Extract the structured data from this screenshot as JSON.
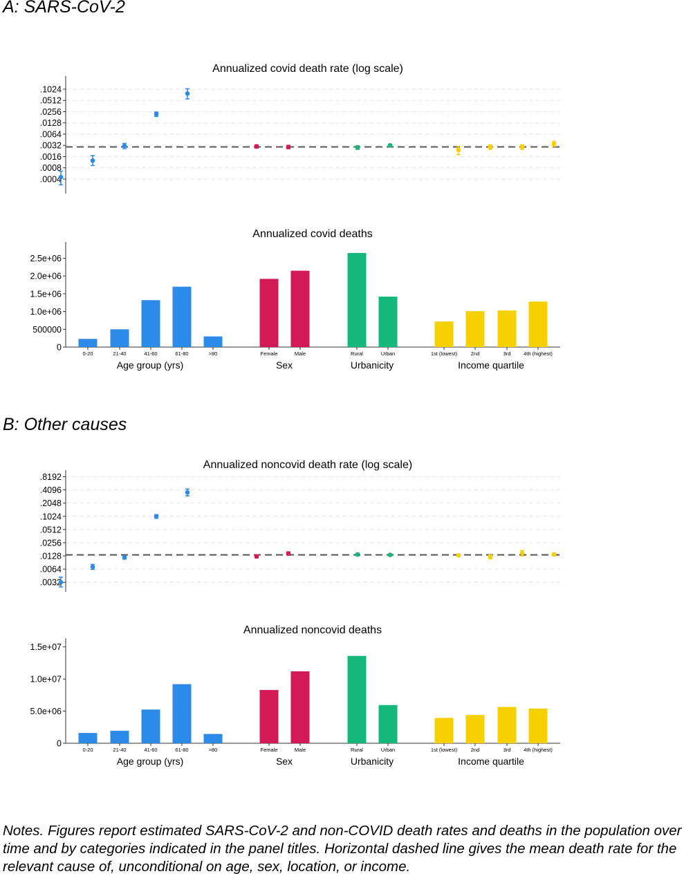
{
  "panels": {
    "a_label": "A: SARS-CoV-2",
    "b_label": "B: Other causes"
  },
  "notes": "Notes.  Figures report estimated SARS-CoV-2 and non-COVID death rates and deaths in the population over time and by categories indicated in the panel titles.  Horizontal dashed line gives the mean death rate for the relevant cause of, unconditional on age, sex, location, or income.",
  "colors": {
    "age": "#2c8ae8",
    "sex": "#d31a57",
    "urbanicity": "#14b87a",
    "income": "#f7d000",
    "dashed": "#555555",
    "grid": "#e6e6e6"
  },
  "groups": [
    {
      "name": "Age group (yrs)",
      "color_key": "age",
      "categories": [
        "0-20",
        "21-40",
        "41-60",
        "61-80",
        ">80"
      ]
    },
    {
      "name": "Sex",
      "color_key": "sex",
      "categories": [
        "Female",
        "Male"
      ]
    },
    {
      "name": "Urbanicity",
      "color_key": "urbanicity",
      "categories": [
        "Rural",
        "Urban"
      ]
    },
    {
      "name": "Income quartile",
      "color_key": "income",
      "categories": [
        "1st (lowest)",
        "2nd",
        "3rd",
        "4th (highest)"
      ]
    }
  ],
  "chart_data": [
    {
      "type": "scatter",
      "id": "covid-rate",
      "title": "Annualized covid death rate (log scale)",
      "scale": "log",
      "ylim": [
        0.00025,
        0.15
      ],
      "yticks": [
        0.1024,
        0.0512,
        0.0256,
        0.0128,
        0.0064,
        0.0032,
        0.0016,
        0.0008,
        0.0004
      ],
      "ytick_labels": [
        ".1024",
        ".0512",
        ".0256",
        ".0128",
        ".0064",
        ".0032",
        ".0016",
        ".0008",
        ".0004"
      ],
      "mean_line": 0.0029,
      "values": [
        0.00045,
        0.00125,
        0.0031,
        0.022,
        0.078,
        0.003,
        0.0029,
        0.0028,
        0.0032,
        0.0024,
        0.0029,
        0.0029,
        0.0035
      ],
      "lower": [
        0.00028,
        0.00092,
        0.0026,
        0.019,
        0.056,
        0.0027,
        0.0026,
        0.0025,
        0.003,
        0.0018,
        0.0025,
        0.0025,
        0.003
      ],
      "upper": [
        0.00065,
        0.0017,
        0.0036,
        0.025,
        0.105,
        0.0033,
        0.0032,
        0.0031,
        0.0034,
        0.003,
        0.0033,
        0.0033,
        0.0041
      ]
    },
    {
      "type": "bar",
      "id": "covid-deaths",
      "title": "Annualized covid deaths",
      "ylim": [
        0,
        2900000
      ],
      "yticks": [
        0,
        500000,
        1000000,
        1500000,
        2000000,
        2500000
      ],
      "ytick_labels": [
        "0",
        "500000",
        "1.0e+06",
        "1.5e+06",
        "2.0e+06",
        "2.5e+06"
      ],
      "values": [
        230000,
        500000,
        1320000,
        1700000,
        300000,
        1920000,
        2150000,
        2650000,
        1420000,
        720000,
        1010000,
        1030000,
        1280000
      ]
    },
    {
      "type": "scatter",
      "id": "noncovid-rate",
      "title": "Annualized noncovid death rate (log scale)",
      "scale": "log",
      "ylim": [
        0.0025,
        1.0
      ],
      "yticks": [
        0.8192,
        0.4096,
        0.2048,
        0.1024,
        0.0512,
        0.0256,
        0.0128,
        0.0064,
        0.0032
      ],
      "ytick_labels": [
        ".8192",
        ".4096",
        ".2048",
        ".1024",
        ".0512",
        ".0256",
        ".0128",
        ".0064",
        ".0032"
      ],
      "mean_line": 0.0135,
      "values": [
        0.0032,
        0.0072,
        0.0118,
        0.1024,
        0.36,
        0.0125,
        0.0145,
        0.0138,
        0.0135,
        0.0132,
        0.0122,
        0.0148,
        0.0138
      ],
      "lower": [
        0.0025,
        0.0063,
        0.0108,
        0.092,
        0.3,
        0.0115,
        0.0133,
        0.0128,
        0.0128,
        0.0124,
        0.011,
        0.0128,
        0.0128
      ],
      "upper": [
        0.0042,
        0.0082,
        0.0128,
        0.112,
        0.43,
        0.0135,
        0.0158,
        0.0148,
        0.0142,
        0.014,
        0.0134,
        0.017,
        0.0148
      ]
    },
    {
      "type": "bar",
      "id": "noncovid-deaths",
      "title": "Annualized noncovid deaths",
      "ylim": [
        0,
        15500000
      ],
      "yticks": [
        0,
        5000000,
        10000000,
        15000000
      ],
      "ytick_labels": [
        "0",
        "5.0e+06",
        "1.0e+07",
        "1.5e+07"
      ],
      "values": [
        1600000,
        1950000,
        5250000,
        9200000,
        1450000,
        8300000,
        11200000,
        13600000,
        5950000,
        3950000,
        4400000,
        5650000,
        5400000
      ]
    }
  ]
}
